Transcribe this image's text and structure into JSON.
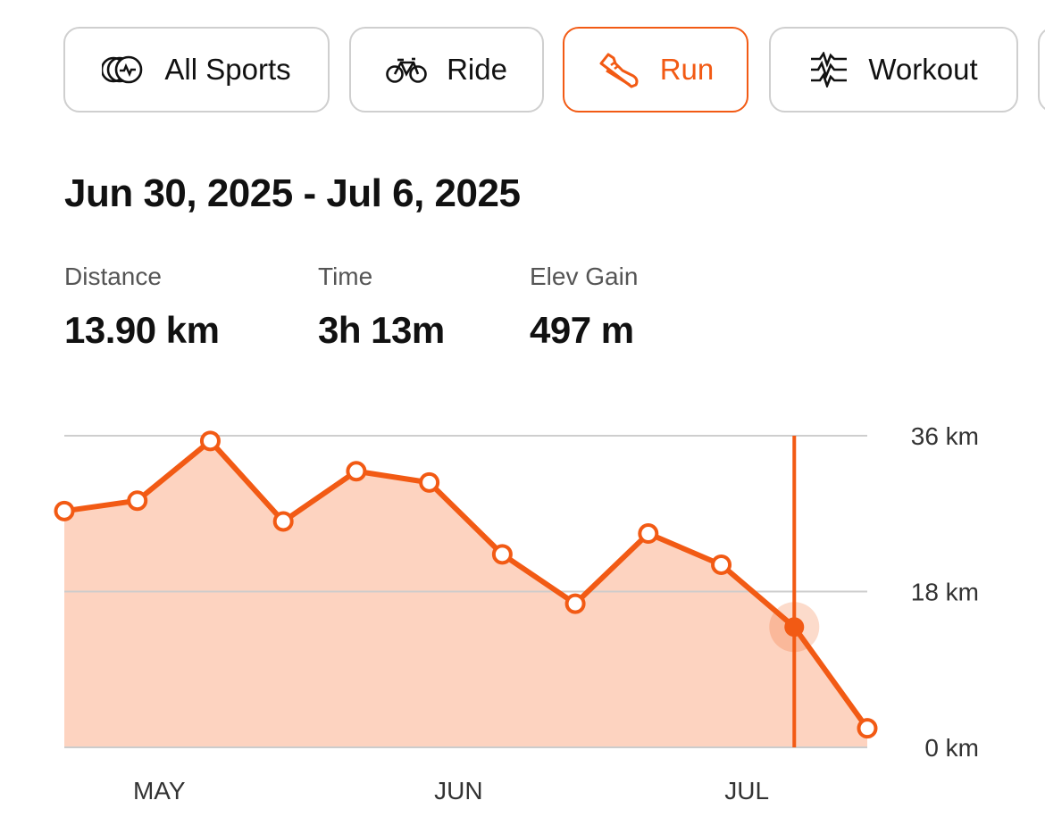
{
  "tabs": [
    {
      "label": "All Sports",
      "icon": "all-sports-icon",
      "active": false
    },
    {
      "label": "Ride",
      "icon": "bike-icon",
      "active": false
    },
    {
      "label": "Run",
      "icon": "shoe-icon",
      "active": true
    },
    {
      "label": "Workout",
      "icon": "workout-icon",
      "active": false
    }
  ],
  "summary": {
    "date_range": "Jun 30, 2025 - Jul 6, 2025",
    "distance_label": "Distance",
    "distance_value": "13.90 km",
    "time_label": "Time",
    "time_value": "3h 13m",
    "elev_label": "Elev Gain",
    "elev_value": "497 m"
  },
  "colors": {
    "accent": "#f25a14",
    "fill": "#fdd3c0",
    "grid": "#cccccc"
  },
  "chart_data": {
    "type": "area",
    "title": "",
    "xlabel": "",
    "ylabel": "",
    "ylim": [
      0,
      36
    ],
    "y_ticks": [
      {
        "value": 36,
        "label": "36 km"
      },
      {
        "value": 18,
        "label": "18 km"
      },
      {
        "value": 0,
        "label": "0 km"
      }
    ],
    "x_ticks": [
      {
        "index": 1.3,
        "label": "MAY"
      },
      {
        "index": 5.4,
        "label": "JUN"
      },
      {
        "index": 9.35,
        "label": "JUL"
      }
    ],
    "series": [
      {
        "values": [
          27.3,
          28.5,
          35.4,
          26.1,
          31.9,
          30.6,
          22.3,
          16.6,
          24.7,
          21.1,
          13.9,
          2.2
        ]
      }
    ],
    "selected_index": 10,
    "grid": true
  }
}
